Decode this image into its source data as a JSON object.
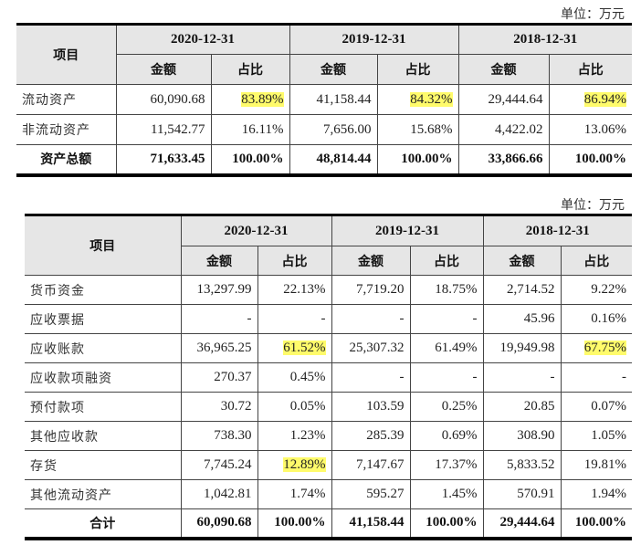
{
  "table1": {
    "unit_label": "单位：万元",
    "header": {
      "item_label": "项目",
      "periods": [
        "2020-12-31",
        "2019-12-31",
        "2018-12-31"
      ],
      "sub_amount": "金额",
      "sub_ratio": "占比"
    },
    "rows": [
      {
        "label": "流动资产",
        "values": [
          {
            "amount": "60,090.68",
            "ratio": "83.89%",
            "ratio_highlight": true
          },
          {
            "amount": "41,158.44",
            "ratio": "84.32%",
            "ratio_highlight": true
          },
          {
            "amount": "29,444.64",
            "ratio": "86.94%",
            "ratio_highlight": true
          }
        ]
      },
      {
        "label": "非流动资产",
        "values": [
          {
            "amount": "11,542.77",
            "ratio": "16.11%"
          },
          {
            "amount": "7,656.00",
            "ratio": "15.68%"
          },
          {
            "amount": "4,422.02",
            "ratio": "13.06%"
          }
        ]
      }
    ],
    "total": {
      "label": "资产总额",
      "values": [
        {
          "amount": "71,633.45",
          "ratio": "100.00%"
        },
        {
          "amount": "48,814.44",
          "ratio": "100.00%"
        },
        {
          "amount": "33,866.66",
          "ratio": "100.00%"
        }
      ]
    }
  },
  "table2": {
    "unit_label": "单位：万元",
    "header": {
      "item_label": "项目",
      "periods": [
        "2020-12-31",
        "2019-12-31",
        "2018-12-31"
      ],
      "sub_amount": "金额",
      "sub_ratio": "占比"
    },
    "rows": [
      {
        "label": "货币资金",
        "values": [
          {
            "amount": "13,297.99",
            "ratio": "22.13%"
          },
          {
            "amount": "7,719.20",
            "ratio": "18.75%"
          },
          {
            "amount": "2,714.52",
            "ratio": "9.22%"
          }
        ]
      },
      {
        "label": "应收票据",
        "values": [
          {
            "amount": "-",
            "ratio": "-"
          },
          {
            "amount": "-",
            "ratio": "-"
          },
          {
            "amount": "45.96",
            "ratio": "0.16%"
          }
        ]
      },
      {
        "label": "应收账款",
        "values": [
          {
            "amount": "36,965.25",
            "ratio": "61.52%",
            "ratio_highlight": true
          },
          {
            "amount": "25,307.32",
            "ratio": "61.49%"
          },
          {
            "amount": "19,949.98",
            "ratio": "67.75%",
            "ratio_highlight": true
          }
        ]
      },
      {
        "label": "应收款项融资",
        "values": [
          {
            "amount": "270.37",
            "ratio": "0.45%"
          },
          {
            "amount": "-",
            "ratio": "-"
          },
          {
            "amount": "-",
            "ratio": "-"
          }
        ]
      },
      {
        "label": "预付款项",
        "values": [
          {
            "amount": "30.72",
            "ratio": "0.05%"
          },
          {
            "amount": "103.59",
            "ratio": "0.25%"
          },
          {
            "amount": "20.85",
            "ratio": "0.07%"
          }
        ]
      },
      {
        "label": "其他应收款",
        "values": [
          {
            "amount": "738.30",
            "ratio": "1.23%"
          },
          {
            "amount": "285.39",
            "ratio": "0.69%"
          },
          {
            "amount": "308.90",
            "ratio": "1.05%"
          }
        ]
      },
      {
        "label": "存货",
        "values": [
          {
            "amount": "7,745.24",
            "ratio": "12.89%",
            "ratio_highlight": true
          },
          {
            "amount": "7,147.67",
            "ratio": "17.37%"
          },
          {
            "amount": "5,833.52",
            "ratio": "19.81%"
          }
        ]
      },
      {
        "label": "其他流动资产",
        "values": [
          {
            "amount": "1,042.81",
            "ratio": "1.74%"
          },
          {
            "amount": "595.27",
            "ratio": "1.45%"
          },
          {
            "amount": "570.91",
            "ratio": "1.94%"
          }
        ]
      }
    ],
    "total": {
      "label": "合计",
      "values": [
        {
          "amount": "60,090.68",
          "ratio": "100.00%"
        },
        {
          "amount": "41,158.44",
          "ratio": "100.00%"
        },
        {
          "amount": "29,444.64",
          "ratio": "100.00%"
        }
      ]
    }
  },
  "colors": {
    "header_bg": "#e6e6e6",
    "highlight": "#fffb6b",
    "border": "#000000"
  }
}
